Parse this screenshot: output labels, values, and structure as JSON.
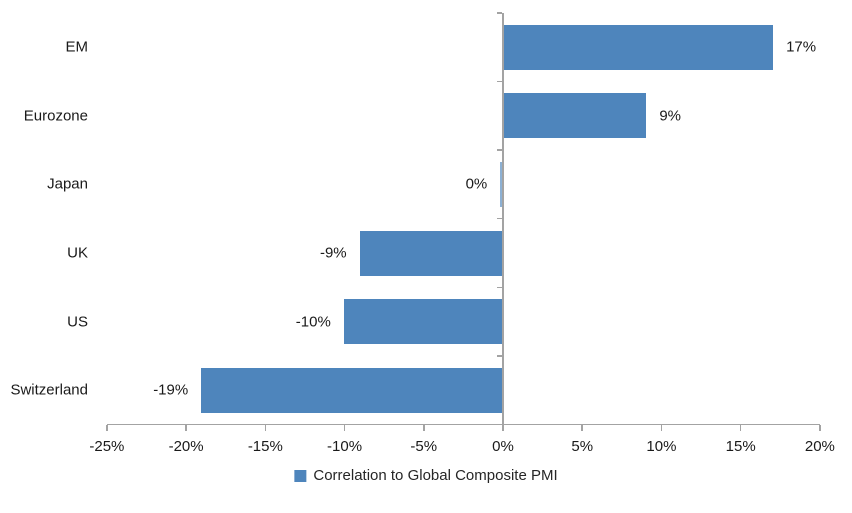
{
  "chart_data": {
    "type": "bar",
    "orientation": "horizontal",
    "title": "",
    "categories": [
      "EM",
      "Eurozone",
      "Japan",
      "UK",
      "US",
      "Switzerland"
    ],
    "values": [
      17,
      9,
      0,
      -9,
      -10,
      -19
    ],
    "data_labels": [
      "17%",
      "9%",
      "0%",
      "-9%",
      "-10%",
      "-19%"
    ],
    "series": [
      {
        "name": "Correlation to Global Composite PMI",
        "values": [
          17,
          9,
          0,
          -9,
          -10,
          -19
        ]
      }
    ],
    "xlabel": "",
    "ylabel": "",
    "xlim": [
      -25,
      20
    ],
    "x_ticks": [
      -25,
      -20,
      -15,
      -10,
      -5,
      0,
      5,
      10,
      15,
      20
    ],
    "x_tick_labels": [
      "-25%",
      "-20%",
      "-15%",
      "-10%",
      "-5%",
      "0%",
      "5%",
      "10%",
      "15%",
      "20%"
    ],
    "grid": false,
    "legend_position": "bottom-center",
    "bar_color": "#4E85BC",
    "axis_color": "#A3A3A3",
    "text_color": "#1A1A1A"
  },
  "legend": {
    "label": "Correlation to Global Composite PMI"
  }
}
